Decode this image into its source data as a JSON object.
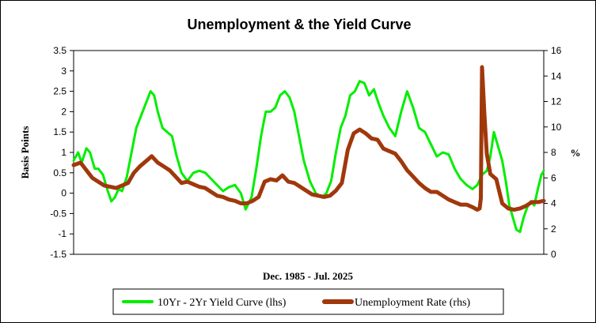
{
  "chart_data": {
    "type": "line",
    "title": "Unemployment & the Yield Curve",
    "xlabel": "Dec. 1985 - Jul. 2025",
    "ylabel": "Basis Points",
    "y2label": "%",
    "xlim": [
      1985.92,
      2025.5
    ],
    "ylim": [
      -1.5,
      3.5
    ],
    "y2lim": [
      0,
      16
    ],
    "yticks": [
      "3.5",
      "3",
      "2.5",
      "2",
      "1.5",
      "1",
      "0.5",
      "0",
      "-0.5",
      "-1",
      "-1.5"
    ],
    "y2ticks": [
      "16",
      "14",
      "12",
      "10",
      "8",
      "6",
      "4",
      "2",
      "0"
    ],
    "grid": false,
    "legend_position": "bottom",
    "series": [
      {
        "name": "10Yr - 2Yr Yield Curve (lhs)",
        "axis": "left",
        "color": "#00ee00",
        "x": [
          1985.92,
          1986.3,
          1986.6,
          1987.0,
          1987.3,
          1987.7,
          1988.0,
          1988.4,
          1988.8,
          1989.1,
          1989.4,
          1989.7,
          1990.0,
          1990.4,
          1990.8,
          1991.2,
          1991.6,
          1992.0,
          1992.4,
          1992.7,
          1993.0,
          1993.4,
          1993.8,
          1994.2,
          1994.6,
          1995.0,
          1995.5,
          1996.0,
          1996.5,
          1997.0,
          1997.5,
          1998.0,
          1998.5,
          1999.0,
          1999.5,
          2000.0,
          2000.4,
          2000.9,
          2001.3,
          2001.7,
          2002.1,
          2002.5,
          2002.9,
          2003.3,
          2003.7,
          2004.1,
          2004.5,
          2004.9,
          2005.3,
          2005.8,
          2006.3,
          2006.8,
          2007.2,
          2007.6,
          2008.0,
          2008.4,
          2008.8,
          2009.2,
          2009.6,
          2010.0,
          2010.4,
          2010.8,
          2011.2,
          2011.6,
          2012.0,
          2012.5,
          2013.0,
          2013.5,
          2014.0,
          2014.5,
          2015.0,
          2015.5,
          2016.0,
          2016.5,
          2017.0,
          2017.5,
          2018.0,
          2018.5,
          2019.0,
          2019.5,
          2019.9,
          2020.3,
          2020.7,
          2021.0,
          2021.3,
          2021.6,
          2022.0,
          2022.3,
          2022.6,
          2022.9,
          2023.2,
          2023.5,
          2023.8,
          2024.1,
          2024.4,
          2024.7,
          2025.0,
          2025.3,
          2025.5
        ],
        "values": [
          0.8,
          1.0,
          0.75,
          1.1,
          1.0,
          0.6,
          0.6,
          0.45,
          0.05,
          -0.2,
          -0.1,
          0.1,
          0.05,
          0.4,
          1.0,
          1.6,
          1.9,
          2.2,
          2.5,
          2.4,
          2.0,
          1.6,
          1.5,
          1.4,
          0.9,
          0.5,
          0.3,
          0.5,
          0.55,
          0.5,
          0.35,
          0.2,
          0.05,
          0.15,
          0.2,
          0.0,
          -0.4,
          -0.1,
          0.6,
          1.4,
          2.0,
          2.0,
          2.1,
          2.4,
          2.5,
          2.35,
          2.0,
          1.4,
          0.8,
          0.3,
          0.0,
          -0.1,
          0.0,
          0.3,
          1.0,
          1.6,
          1.9,
          2.4,
          2.5,
          2.75,
          2.7,
          2.4,
          2.55,
          2.2,
          1.9,
          1.6,
          1.4,
          2.0,
          2.5,
          2.1,
          1.6,
          1.5,
          1.2,
          0.9,
          1.0,
          0.95,
          0.6,
          0.35,
          0.2,
          0.1,
          0.2,
          0.45,
          0.55,
          0.9,
          1.5,
          1.2,
          0.8,
          0.3,
          -0.3,
          -0.6,
          -0.9,
          -0.95,
          -0.6,
          -0.35,
          -0.2,
          -0.3,
          0.1,
          0.45,
          0.55
        ]
      },
      {
        "name": "Unemployment Rate (rhs)",
        "axis": "right",
        "color": "#a0380c",
        "x": [
          1985.92,
          1986.5,
          1987.0,
          1987.5,
          1988.0,
          1988.5,
          1989.0,
          1989.5,
          1990.0,
          1990.5,
          1991.0,
          1991.5,
          1992.0,
          1992.5,
          1993.0,
          1993.5,
          1994.0,
          1994.5,
          1995.0,
          1995.5,
          1996.0,
          1996.5,
          1997.0,
          1997.5,
          1998.0,
          1998.5,
          1999.0,
          1999.5,
          2000.0,
          2000.5,
          2001.0,
          2001.5,
          2002.0,
          2002.5,
          2003.0,
          2003.5,
          2004.0,
          2004.5,
          2005.0,
          2005.5,
          2006.0,
          2006.5,
          2007.0,
          2007.5,
          2008.0,
          2008.5,
          2009.0,
          2009.5,
          2010.0,
          2010.5,
          2011.0,
          2011.5,
          2012.0,
          2012.5,
          2013.0,
          2013.5,
          2014.0,
          2014.5,
          2015.0,
          2015.5,
          2016.0,
          2016.5,
          2017.0,
          2017.5,
          2018.0,
          2018.5,
          2019.0,
          2019.5,
          2019.9,
          2020.1,
          2020.2,
          2020.3,
          2020.5,
          2020.7,
          2021.0,
          2021.5,
          2022.0,
          2022.5,
          2023.0,
          2023.5,
          2024.0,
          2024.5,
          2025.0,
          2025.5
        ],
        "values": [
          7.0,
          7.2,
          6.6,
          6.0,
          5.7,
          5.4,
          5.3,
          5.2,
          5.4,
          5.6,
          6.4,
          6.9,
          7.3,
          7.7,
          7.2,
          6.9,
          6.6,
          6.1,
          5.6,
          5.7,
          5.5,
          5.3,
          5.2,
          4.9,
          4.6,
          4.5,
          4.3,
          4.2,
          4.0,
          4.0,
          4.2,
          4.5,
          5.7,
          5.9,
          5.8,
          6.2,
          5.7,
          5.6,
          5.3,
          5.0,
          4.7,
          4.6,
          4.5,
          4.6,
          5.0,
          5.6,
          8.2,
          9.5,
          9.8,
          9.5,
          9.1,
          9.0,
          8.3,
          8.1,
          7.9,
          7.3,
          6.6,
          6.1,
          5.6,
          5.2,
          4.9,
          4.9,
          4.6,
          4.3,
          4.1,
          3.9,
          3.9,
          3.7,
          3.5,
          3.6,
          4.4,
          14.7,
          11.0,
          7.9,
          6.3,
          5.9,
          4.0,
          3.6,
          3.5,
          3.6,
          3.8,
          4.1,
          4.1,
          4.2
        ]
      }
    ]
  }
}
